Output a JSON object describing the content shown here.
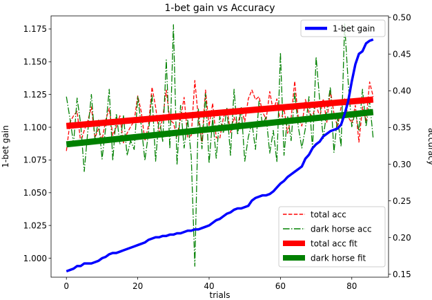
{
  "chart_data": {
    "type": "line",
    "title": "1-bet gain vs Accuracy",
    "xlabel": "trials",
    "ylabel_left": "1-bet gain",
    "ylabel_right": "accuracy",
    "xlim": [
      -4.3,
      90.3
    ],
    "ylim_left": [
      0.9855,
      1.185
    ],
    "ylim_right": [
      0.146,
      0.502
    ],
    "xticks": [
      0,
      20,
      40,
      60,
      80
    ],
    "yticks_left": [
      1.0,
      1.025,
      1.05,
      1.075,
      1.1,
      1.125,
      1.15,
      1.175
    ],
    "yticks_left_labels": [
      "1.000",
      "1.025",
      "1.050",
      "1.075",
      "1.100",
      "1.125",
      "1.150",
      "1.175"
    ],
    "yticks_right": [
      0.15,
      0.2,
      0.25,
      0.3,
      0.35,
      0.4,
      0.45,
      0.5
    ],
    "yticks_right_labels": [
      "0.15",
      "0.20",
      "0.25",
      "0.30",
      "0.35",
      "0.40",
      "0.45",
      "0.50"
    ],
    "legend_left_axis": {
      "placement": "upper right",
      "entries": [
        "1-bet gain"
      ]
    },
    "legend_right_axis": {
      "placement": "lower right",
      "entries": [
        "total acc",
        "dark horse acc",
        "total acc fit",
        "dark horse fit"
      ]
    },
    "series": [
      {
        "name": "1-bet gain",
        "axis": "left",
        "color": "#0000ff",
        "style": "solid-thick",
        "x": [
          0,
          1,
          2,
          3,
          4,
          5,
          6,
          7,
          8,
          9,
          10,
          11,
          12,
          13,
          14,
          15,
          16,
          17,
          18,
          19,
          20,
          21,
          22,
          23,
          24,
          25,
          26,
          27,
          28,
          29,
          30,
          31,
          32,
          33,
          34,
          35,
          36,
          37,
          38,
          39,
          40,
          41,
          42,
          43,
          44,
          45,
          46,
          47,
          48,
          49,
          50,
          51,
          52,
          53,
          54,
          55,
          56,
          57,
          58,
          59,
          60,
          61,
          62,
          63,
          64,
          65,
          66,
          67,
          68,
          69,
          70,
          71,
          72,
          73,
          74,
          75,
          76,
          77,
          78,
          79,
          80,
          81,
          82,
          83,
          84,
          85,
          86
        ],
        "values": [
          0.99,
          0.991,
          0.992,
          0.994,
          0.994,
          0.996,
          0.996,
          0.996,
          0.997,
          0.998,
          1.0,
          1.001,
          1.003,
          1.004,
          1.004,
          1.005,
          1.006,
          1.007,
          1.008,
          1.009,
          1.01,
          1.011,
          1.012,
          1.014,
          1.015,
          1.016,
          1.016,
          1.017,
          1.017,
          1.018,
          1.018,
          1.019,
          1.019,
          1.02,
          1.021,
          1.021,
          1.022,
          1.022,
          1.023,
          1.024,
          1.025,
          1.027,
          1.029,
          1.03,
          1.032,
          1.034,
          1.035,
          1.037,
          1.038,
          1.038,
          1.039,
          1.04,
          1.044,
          1.046,
          1.047,
          1.048,
          1.048,
          1.049,
          1.051,
          1.054,
          1.057,
          1.059,
          1.062,
          1.064,
          1.066,
          1.068,
          1.07,
          1.076,
          1.079,
          1.084,
          1.087,
          1.089,
          1.093,
          1.095,
          1.097,
          1.098,
          1.099,
          1.102,
          1.11,
          1.12,
          1.135,
          1.148,
          1.156,
          1.158,
          1.164,
          1.166,
          1.167
        ]
      },
      {
        "name": "total acc",
        "axis": "right",
        "color": "#ff0000",
        "style": "dashed",
        "x": [
          0,
          1,
          2,
          3,
          4,
          5,
          6,
          7,
          8,
          9,
          10,
          11,
          12,
          13,
          14,
          15,
          16,
          17,
          18,
          19,
          20,
          21,
          22,
          23,
          24,
          25,
          26,
          27,
          28,
          29,
          30,
          31,
          32,
          33,
          34,
          35,
          36,
          37,
          38,
          39,
          40,
          41,
          42,
          43,
          44,
          45,
          46,
          47,
          48,
          49,
          50,
          51,
          52,
          53,
          54,
          55,
          56,
          57,
          58,
          59,
          60,
          61,
          62,
          63,
          64,
          65,
          66,
          67,
          68,
          69,
          70,
          71,
          72,
          73,
          74,
          75,
          76,
          77,
          78,
          79,
          80,
          81,
          82,
          83,
          84,
          85,
          86
        ],
        "values": [
          0.318,
          0.357,
          0.366,
          0.372,
          0.33,
          0.346,
          0.359,
          0.378,
          0.336,
          0.348,
          0.333,
          0.36,
          0.376,
          0.339,
          0.351,
          0.366,
          0.329,
          0.342,
          0.351,
          0.359,
          0.393,
          0.371,
          0.332,
          0.352,
          0.405,
          0.378,
          0.343,
          0.363,
          0.401,
          0.36,
          0.356,
          0.338,
          0.362,
          0.391,
          0.337,
          0.339,
          0.414,
          0.362,
          0.331,
          0.401,
          0.352,
          0.383,
          0.336,
          0.335,
          0.363,
          0.376,
          0.343,
          0.364,
          0.351,
          0.377,
          0.358,
          0.389,
          0.401,
          0.388,
          0.392,
          0.371,
          0.361,
          0.399,
          0.372,
          0.389,
          0.356,
          0.376,
          0.342,
          0.363,
          0.413,
          0.363,
          0.352,
          0.388,
          0.37,
          0.365,
          0.382,
          0.364,
          0.389,
          0.357,
          0.401,
          0.369,
          0.351,
          0.378,
          0.389,
          0.364,
          0.356,
          0.38,
          0.33,
          0.378,
          0.359,
          0.412,
          0.392
        ]
      },
      {
        "name": "dark horse acc",
        "axis": "right",
        "color": "#008000",
        "style": "dashdot",
        "x": [
          0,
          1,
          2,
          3,
          4,
          5,
          6,
          7,
          8,
          9,
          10,
          11,
          12,
          13,
          14,
          15,
          16,
          17,
          18,
          19,
          20,
          21,
          22,
          23,
          24,
          25,
          26,
          27,
          28,
          29,
          30,
          31,
          32,
          33,
          34,
          35,
          36,
          37,
          38,
          39,
          40,
          41,
          42,
          43,
          44,
          45,
          46,
          47,
          48,
          49,
          50,
          51,
          52,
          53,
          54,
          55,
          56,
          57,
          58,
          59,
          60,
          61,
          62,
          63,
          64,
          65,
          66,
          67,
          68,
          69,
          70,
          71,
          72,
          73,
          74,
          75,
          76,
          77,
          78,
          79,
          80,
          81,
          82,
          83,
          84,
          85,
          86
        ],
        "values": [
          0.392,
          0.362,
          0.328,
          0.39,
          0.355,
          0.29,
          0.345,
          0.395,
          0.333,
          0.36,
          0.307,
          0.349,
          0.402,
          0.305,
          0.369,
          0.327,
          0.366,
          0.312,
          0.332,
          0.32,
          0.392,
          0.352,
          0.305,
          0.342,
          0.395,
          0.304,
          0.365,
          0.331,
          0.442,
          0.321,
          0.49,
          0.299,
          0.38,
          0.322,
          0.361,
          0.31,
          0.161,
          0.376,
          0.321,
          0.396,
          0.301,
          0.363,
          0.308,
          0.365,
          0.342,
          0.376,
          0.312,
          0.402,
          0.34,
          0.377,
          0.304,
          0.337,
          0.357,
          0.32,
          0.386,
          0.353,
          0.365,
          0.315,
          0.346,
          0.303,
          0.452,
          0.312,
          0.366,
          0.332,
          0.398,
          0.351,
          0.322,
          0.349,
          0.392,
          0.32,
          0.446,
          0.387,
          0.335,
          0.373,
          0.405,
          0.316,
          0.365,
          0.324,
          0.491,
          0.411,
          0.351,
          0.372,
          0.345,
          0.402,
          0.351,
          0.386,
          0.335
        ]
      },
      {
        "name": "total acc fit",
        "axis": "right",
        "color": "#ff0000",
        "style": "solid-fit",
        "x": [
          0,
          86
        ],
        "values": [
          0.352,
          0.388
        ]
      },
      {
        "name": "dark horse fit",
        "axis": "right",
        "color": "#008000",
        "style": "solid-fit",
        "x": [
          0,
          86
        ],
        "values": [
          0.327,
          0.371
        ]
      }
    ]
  }
}
